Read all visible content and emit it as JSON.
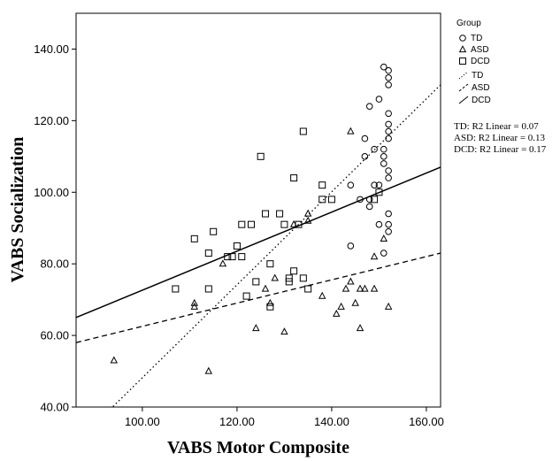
{
  "chart_data": {
    "type": "scatter",
    "xlabel": "VABS Motor Composite",
    "ylabel": "VABS Socialization",
    "xlim": [
      86,
      163
    ],
    "ylim": [
      40,
      150
    ],
    "xticks": [
      "100.00",
      "120.00",
      "140.00",
      "160.00"
    ],
    "yticks": [
      "40.00",
      "60.00",
      "80.00",
      "100.00",
      "120.00",
      "140.00"
    ],
    "legend_title": "Group",
    "legend_position": "right",
    "series": [
      {
        "name": "TD",
        "marker": "circle",
        "points": [
          [
            151,
            135
          ],
          [
            152,
            134
          ],
          [
            152,
            132
          ],
          [
            152,
            130
          ],
          [
            150,
            126
          ],
          [
            148,
            124
          ],
          [
            152,
            122
          ],
          [
            152,
            119
          ],
          [
            152,
            117
          ],
          [
            152,
            115
          ],
          [
            147,
            115
          ],
          [
            151,
            112
          ],
          [
            149,
            112
          ],
          [
            151,
            110
          ],
          [
            147,
            110
          ],
          [
            151,
            108
          ],
          [
            152,
            106
          ],
          [
            152,
            104
          ],
          [
            149,
            102
          ],
          [
            150,
            102
          ],
          [
            144,
            102
          ],
          [
            148,
            98
          ],
          [
            146,
            98
          ],
          [
            148,
            96
          ],
          [
            152,
            94
          ],
          [
            152,
            91
          ],
          [
            150,
            91
          ],
          [
            152,
            89
          ],
          [
            144,
            85
          ],
          [
            151,
            83
          ]
        ],
        "fit": {
          "label": "TD: R2 Linear = 0.07",
          "style": "dotted",
          "y_at_86": 30,
          "y_at_163": 130
        }
      },
      {
        "name": "ASD",
        "marker": "triangle",
        "points": [
          [
            94,
            53
          ],
          [
            114,
            50
          ],
          [
            111,
            68
          ],
          [
            111,
            69
          ],
          [
            117,
            80
          ],
          [
            124,
            62
          ],
          [
            126,
            73
          ],
          [
            127,
            69
          ],
          [
            128,
            76
          ],
          [
            130,
            61
          ],
          [
            132,
            91
          ],
          [
            135,
            92
          ],
          [
            135,
            94
          ],
          [
            138,
            71
          ],
          [
            141,
            66
          ],
          [
            142,
            68
          ],
          [
            144,
            75
          ],
          [
            143,
            73
          ],
          [
            145,
            69
          ],
          [
            146,
            62
          ],
          [
            146,
            73
          ],
          [
            147,
            73
          ],
          [
            149,
            73
          ],
          [
            149,
            82
          ],
          [
            151,
            87
          ],
          [
            152,
            68
          ],
          [
            144,
            117
          ]
        ],
        "fit": {
          "label": "ASD: R2 Linear = 0.13",
          "style": "dashed",
          "y_at_86": 58,
          "y_at_163": 83
        }
      },
      {
        "name": "DCD",
        "marker": "square",
        "points": [
          [
            107,
            73
          ],
          [
            111,
            87
          ],
          [
            114,
            83
          ],
          [
            114,
            73
          ],
          [
            115,
            89
          ],
          [
            118,
            82
          ],
          [
            119,
            82
          ],
          [
            120,
            85
          ],
          [
            121,
            91
          ],
          [
            121,
            82
          ],
          [
            122,
            71
          ],
          [
            123,
            91
          ],
          [
            124,
            75
          ],
          [
            125,
            110
          ],
          [
            126,
            94
          ],
          [
            127,
            80
          ],
          [
            127,
            68
          ],
          [
            129,
            94
          ],
          [
            130,
            91
          ],
          [
            131,
            75
          ],
          [
            131,
            76
          ],
          [
            132,
            78
          ],
          [
            132,
            104
          ],
          [
            133,
            91
          ],
          [
            134,
            117
          ],
          [
            134,
            76
          ],
          [
            135,
            73
          ],
          [
            138,
            102
          ],
          [
            138,
            98
          ],
          [
            140,
            98
          ],
          [
            149,
            98
          ],
          [
            150,
            100
          ]
        ],
        "fit": {
          "label": "DCD: R2 Linear = 0.17",
          "style": "solid",
          "y_at_86": 65,
          "y_at_163": 107
        }
      }
    ]
  }
}
